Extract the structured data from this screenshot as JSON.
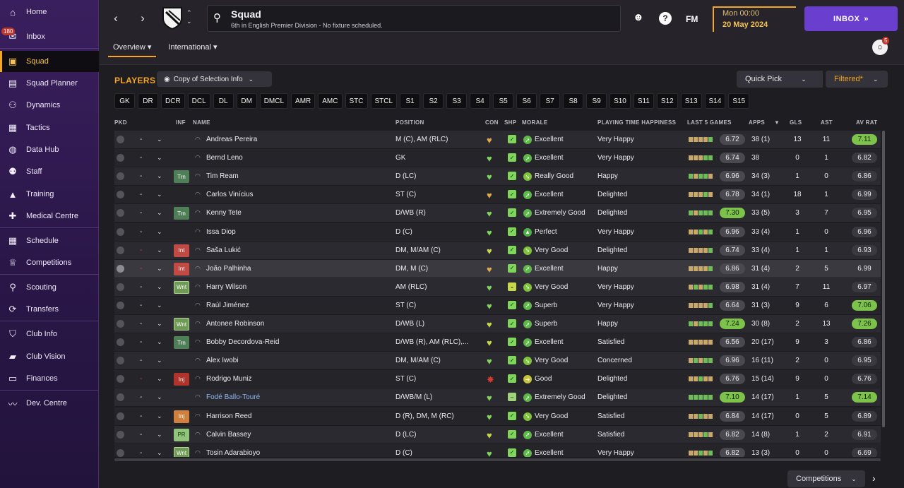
{
  "sidebar": {
    "items": [
      {
        "label": "Home",
        "icon": "home-icon",
        "glyph": "⌂"
      },
      {
        "label": "Inbox",
        "icon": "inbox-icon",
        "glyph": "✉",
        "badge": "180"
      },
      {
        "label": "Squad",
        "icon": "shirt-icon",
        "glyph": "▣",
        "active": true
      },
      {
        "label": "Squad Planner",
        "icon": "clipboard-icon",
        "glyph": "▤"
      },
      {
        "label": "Dynamics",
        "icon": "people-icon",
        "glyph": "⚇"
      },
      {
        "label": "Tactics",
        "icon": "tactics-icon",
        "glyph": "▦"
      },
      {
        "label": "Data Hub",
        "icon": "data-hub-icon",
        "glyph": "◍"
      },
      {
        "label": "Staff",
        "icon": "staff-icon",
        "glyph": "⚉"
      },
      {
        "label": "Training",
        "icon": "training-icon",
        "glyph": "▲"
      },
      {
        "label": "Medical Centre",
        "icon": "medical-icon",
        "glyph": "✚"
      },
      {
        "label": "Schedule",
        "icon": "calendar-icon",
        "glyph": "▦"
      },
      {
        "label": "Competitions",
        "icon": "trophy-icon",
        "glyph": "♕"
      },
      {
        "label": "Scouting",
        "icon": "magnifier-icon",
        "glyph": "⚲"
      },
      {
        "label": "Transfers",
        "icon": "transfer-icon",
        "glyph": "⟳"
      },
      {
        "label": "Club Info",
        "icon": "shield-icon",
        "glyph": "⛉"
      },
      {
        "label": "Club Vision",
        "icon": "briefcase-icon",
        "glyph": "▰"
      },
      {
        "label": "Finances",
        "icon": "money-icon",
        "glyph": "▭"
      },
      {
        "label": "Dev. Centre",
        "icon": "dev-centre-icon",
        "glyph": "〰"
      }
    ]
  },
  "header": {
    "title": "Squad",
    "subtitle": "6th in English Premier Division - No fixture scheduled.",
    "fm_label": "FM",
    "date_line1": "Mon 00:00",
    "date_line2": "20 May 2024",
    "inbox_label": "INBOX",
    "tabs": [
      {
        "label": "Overview ▾",
        "active": true
      },
      {
        "label": "International ▾"
      }
    ],
    "notifications": "5"
  },
  "toolbar": {
    "players_label": "PLAYERS",
    "copy_label": "Copy of Selection Info",
    "quick_pick": "Quick Pick",
    "filtered": "Filtered*",
    "competitions": "Competitions"
  },
  "positions": [
    "GK",
    "DR",
    "DCR",
    "DCL",
    "DL",
    "DM",
    "DMCL",
    "AMR",
    "AMC",
    "STC",
    "STCL",
    "S1",
    "S2",
    "S3",
    "S4",
    "S5",
    "S6",
    "S7",
    "S8",
    "S9",
    "S10",
    "S11",
    "S12",
    "S13",
    "S14",
    "S15"
  ],
  "columns": {
    "pkd": "PKD",
    "inf": "INF",
    "name": "NAME",
    "position": "POSITION",
    "con": "CON",
    "shp": "SHP",
    "morale": "MORALE",
    "pth": "PLAYING TIME HAPPINESS",
    "last5": "LAST 5 GAMES",
    "apps": "APPS",
    "gls": "GLS",
    "ast": "AST",
    "avrat": "AV RAT"
  },
  "colors": {
    "accent": "#f5a623",
    "good": "#7dc24a",
    "inbox": "#6a3fd0"
  },
  "players": [
    {
      "name": "Andreas Pereira",
      "inf": "",
      "position": "M (C), AM (RLC)",
      "con": "orange",
      "shp": "good",
      "morale_ic": "up",
      "morale": "Excellent",
      "pth": "Very Happy",
      "bars": [
        "#c9a86a",
        "#c9a86a",
        "#c9a86a",
        "#c9a86a",
        "#6fbd55"
      ],
      "last5": "6.72",
      "apps": "38 (1)",
      "gls": "13",
      "ast": "11",
      "avrat": "7.11",
      "avgood": true
    },
    {
      "name": "Bernd Leno",
      "inf": "",
      "position": "GK",
      "con": "green",
      "shp": "good",
      "morale_ic": "up",
      "morale": "Excellent",
      "pth": "Very Happy",
      "bars": [
        "#c9a86a",
        "#c9a86a",
        "#c9a86a",
        "#6fbd55",
        "#6fbd55"
      ],
      "last5": "6.74",
      "apps": "38",
      "gls": "0",
      "ast": "1",
      "avrat": "6.82"
    },
    {
      "name": "Tim Ream",
      "inf": "Trn",
      "position": "D (LC)",
      "con": "green",
      "shp": "good",
      "morale_ic": "down",
      "morale": "Really Good",
      "pth": "Happy",
      "bars": [
        "#6fbd55",
        "#c9a86a",
        "#6fbd55",
        "#6fbd55",
        "#c9a86a"
      ],
      "last5": "6.96",
      "apps": "34 (3)",
      "gls": "1",
      "ast": "0",
      "avrat": "6.86"
    },
    {
      "name": "Carlos Vinícius",
      "inf": "",
      "position": "ST (C)",
      "con": "orange",
      "shp": "good",
      "morale_ic": "up",
      "morale": "Excellent",
      "pth": "Delighted",
      "bars": [
        "#c9a86a",
        "#c9a86a",
        "#c9a86a",
        "#6fbd55",
        "#c9a86a"
      ],
      "last5": "6.78",
      "apps": "34 (1)",
      "gls": "18",
      "ast": "1",
      "avrat": "6.99"
    },
    {
      "name": "Kenny Tete",
      "inf": "Trn",
      "position": "D/WB (R)",
      "con": "green",
      "shp": "good",
      "morale_ic": "up",
      "morale": "Extremely Good",
      "pth": "Delighted",
      "bars": [
        "#6fbd55",
        "#c9a86a",
        "#6fbd55",
        "#6fbd55",
        "#6fbd55"
      ],
      "last5": "7.30",
      "l5good": true,
      "apps": "33 (5)",
      "gls": "3",
      "ast": "7",
      "avrat": "6.95"
    },
    {
      "name": "Issa Diop",
      "inf": "",
      "position": "D (C)",
      "con": "green",
      "shp": "good",
      "morale_ic": "star",
      "morale": "Perfect",
      "pth": "Very Happy",
      "bars": [
        "#c9a86a",
        "#c9a86a",
        "#6fbd55",
        "#c9a86a",
        "#6fbd55"
      ],
      "last5": "6.96",
      "apps": "33 (4)",
      "gls": "1",
      "ast": "0",
      "avrat": "6.96"
    },
    {
      "name": "Saša Lukić",
      "inf": "Int",
      "dashred": true,
      "position": "DM, M/AM (C)",
      "con": "yellow",
      "shp": "good",
      "morale_ic": "down",
      "morale": "Very Good",
      "pth": "Delighted",
      "bars": [
        "#c9a86a",
        "#c9a86a",
        "#c9a86a",
        "#c9a86a",
        "#6fbd55"
      ],
      "last5": "6.74",
      "apps": "33 (4)",
      "gls": "1",
      "ast": "1",
      "avrat": "6.93"
    },
    {
      "name": "João Palhinha",
      "inf": "Int",
      "dashred": true,
      "sel": true,
      "position": "DM, M (C)",
      "con": "orange",
      "shp": "good",
      "morale_ic": "up",
      "morale": "Excellent",
      "pth": "Happy",
      "bars": [
        "#c9a86a",
        "#c9a86a",
        "#c9a86a",
        "#c9a86a",
        "#6fbd55"
      ],
      "last5": "6.86",
      "apps": "31 (4)",
      "gls": "2",
      "ast": "5",
      "avrat": "6.99"
    },
    {
      "name": "Harry Wilson",
      "inf": "Wnt",
      "position": "AM (RLC)",
      "con": "green",
      "shp": "ok",
      "morale_ic": "down",
      "morale": "Very Good",
      "pth": "Very Happy",
      "bars": [
        "#c9a86a",
        "#6fbd55",
        "#c9a86a",
        "#6fbd55",
        "#6fbd55"
      ],
      "last5": "6.98",
      "apps": "31 (4)",
      "gls": "7",
      "ast": "11",
      "avrat": "6.97"
    },
    {
      "name": "Raúl Jiménez",
      "inf": "",
      "position": "ST (C)",
      "con": "green",
      "shp": "good",
      "morale_ic": "up",
      "morale": "Superb",
      "pth": "Very Happy",
      "bars": [
        "#c9a86a",
        "#c9a86a",
        "#c9a86a",
        "#c9a86a",
        "#6fbd55"
      ],
      "last5": "6.64",
      "apps": "31 (3)",
      "gls": "9",
      "ast": "6",
      "avrat": "7.06",
      "avgood": true
    },
    {
      "name": "Antonee Robinson",
      "inf": "Wnt",
      "position": "D/WB (L)",
      "con": "yellow",
      "shp": "good",
      "morale_ic": "up",
      "morale": "Superb",
      "pth": "Happy",
      "bars": [
        "#6fbd55",
        "#c9a86a",
        "#6fbd55",
        "#6fbd55",
        "#6fbd55"
      ],
      "last5": "7.24",
      "l5good": true,
      "apps": "30 (8)",
      "gls": "2",
      "ast": "13",
      "avrat": "7.26",
      "avgood": true
    },
    {
      "name": "Bobby Decordova-Reid",
      "inf": "Trn",
      "position": "D/WB (R), AM (RLC),...",
      "con": "yellow",
      "shp": "good",
      "morale_ic": "up",
      "morale": "Excellent",
      "pth": "Satisfied",
      "bars": [
        "#c9a86a",
        "#c9a86a",
        "#c9a86a",
        "#c9a86a",
        "#c9a86a"
      ],
      "last5": "6.56",
      "apps": "20 (17)",
      "gls": "9",
      "ast": "3",
      "avrat": "6.86"
    },
    {
      "name": "Alex Iwobi",
      "inf": "",
      "position": "DM, M/AM (C)",
      "con": "green",
      "shp": "good",
      "morale_ic": "down",
      "morale": "Very Good",
      "pth": "Concerned",
      "bars": [
        "#c9a86a",
        "#6fbd55",
        "#c9a86a",
        "#6fbd55",
        "#6fbd55"
      ],
      "last5": "6.96",
      "apps": "16 (11)",
      "gls": "2",
      "ast": "0",
      "avrat": "6.95"
    },
    {
      "name": "Rodrigo Muniz",
      "inf": "Inj",
      "infcls": "inj",
      "dashred": true,
      "position": "ST (C)",
      "con": "red",
      "shp": "good",
      "morale_ic": "neutral",
      "morale": "Good",
      "pth": "Delighted",
      "bars": [
        "#c9a86a",
        "#c9a86a",
        "#6fbd55",
        "#c9a86a",
        "#c9a86a"
      ],
      "last5": "6.76",
      "apps": "15 (14)",
      "gls": "9",
      "ast": "0",
      "avrat": "6.76"
    },
    {
      "name": "Fodé Ballo-Touré",
      "inf": "",
      "blue": true,
      "position": "D/WB/M (L)",
      "con": "green",
      "shp": "none",
      "morale_ic": "up",
      "morale": "Extremely Good",
      "pth": "Delighted",
      "bars": [
        "#6fbd55",
        "#6fbd55",
        "#6fbd55",
        "#6fbd55",
        "#6fbd55"
      ],
      "last5": "7.10",
      "l5good": true,
      "apps": "14 (17)",
      "gls": "1",
      "ast": "5",
      "avrat": "7.14",
      "avgood": true
    },
    {
      "name": "Harrison Reed",
      "inf": "Inj",
      "infcls": "injo",
      "position": "D (R), DM, M (RC)",
      "con": "green",
      "shp": "good",
      "morale_ic": "down",
      "morale": "Very Good",
      "pth": "Satisfied",
      "bars": [
        "#c9a86a",
        "#c9a86a",
        "#6fbd55",
        "#c9a86a",
        "#c9a86a"
      ],
      "last5": "6.84",
      "apps": "14 (17)",
      "gls": "0",
      "ast": "5",
      "avrat": "6.89"
    },
    {
      "name": "Calvin Bassey",
      "inf": "PR",
      "position": "D (LC)",
      "con": "yellow",
      "shp": "good",
      "morale_ic": "up",
      "morale": "Excellent",
      "pth": "Satisfied",
      "bars": [
        "#c9a86a",
        "#c9a86a",
        "#c9a86a",
        "#6fbd55",
        "#c9a86a"
      ],
      "last5": "6.82",
      "apps": "14 (8)",
      "gls": "1",
      "ast": "2",
      "avrat": "6.91"
    },
    {
      "name": "Tosin Adarabioyo",
      "inf": "Wnt",
      "position": "D (C)",
      "con": "green",
      "shp": "good",
      "morale_ic": "up",
      "morale": "Excellent",
      "pth": "Very Happy",
      "bars": [
        "#c9a86a",
        "#c9a86a",
        "#6fbd55",
        "#c9a86a",
        "#6fbd55"
      ],
      "last5": "6.82",
      "apps": "13 (3)",
      "gls": "0",
      "ast": "0",
      "avrat": "6.69"
    }
  ]
}
